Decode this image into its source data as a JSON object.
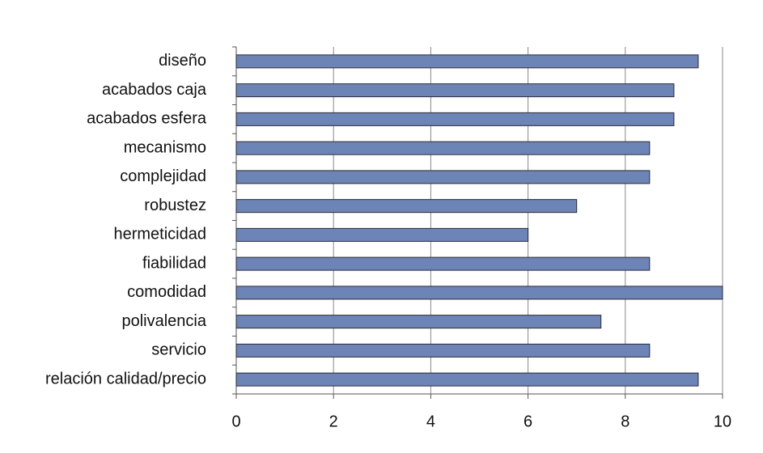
{
  "chart_data": {
    "type": "hbar",
    "categories": [
      "diseño",
      "acabados caja",
      "acabados esfera",
      "mecanismo",
      "complejidad",
      "robustez",
      "hermeticidad",
      "fiabilidad",
      "comodidad",
      "polivalencia",
      "servicio",
      "relación calidad/precio"
    ],
    "values": [
      9.5,
      9,
      9,
      8.5,
      8.5,
      7,
      6,
      8.5,
      10,
      7.5,
      8.5,
      9.5
    ],
    "color": "#6c84b6",
    "xlim": [
      0,
      10
    ],
    "xticks": [
      0,
      2,
      4,
      6,
      8,
      10
    ],
    "grid": true
  }
}
